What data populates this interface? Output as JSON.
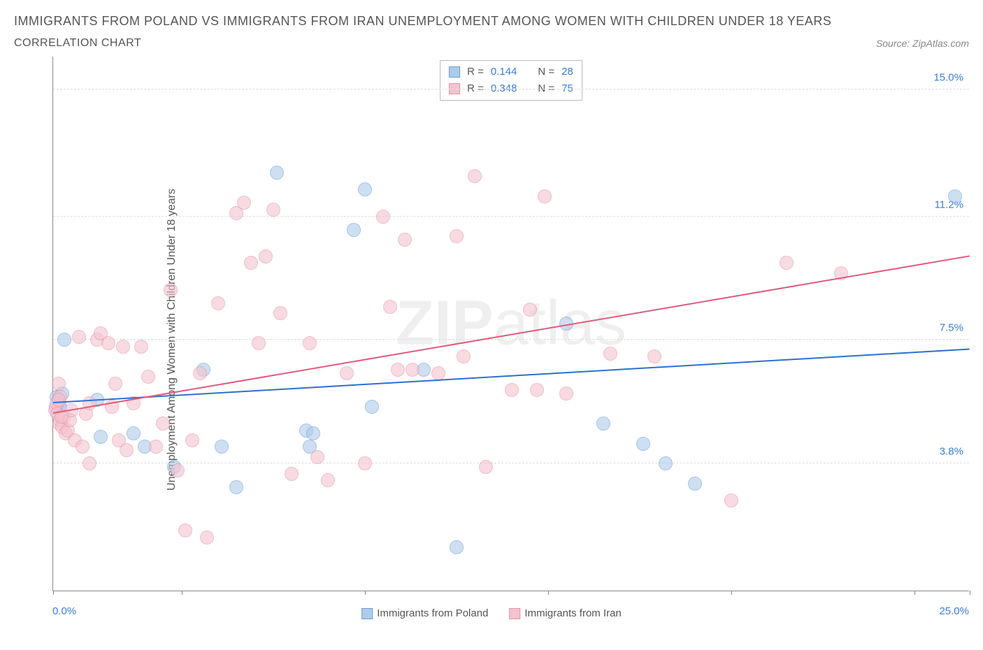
{
  "title": "IMMIGRANTS FROM POLAND VS IMMIGRANTS FROM IRAN UNEMPLOYMENT AMONG WOMEN WITH CHILDREN UNDER 18 YEARS",
  "subtitle": "CORRELATION CHART",
  "source_label": "Source:",
  "source_value": "ZipAtlas.com",
  "ylabel": "Unemployment Among Women with Children Under 18 years",
  "watermark_bold": "ZIP",
  "watermark_light": "atlas",
  "chart": {
    "type": "scatter",
    "xlim": [
      0,
      25
    ],
    "ylim": [
      0,
      16
    ],
    "x_min_label": "0.0%",
    "x_max_label": "25.0%",
    "xtick_positions": [
      0,
      3.5,
      8.5,
      13.5,
      18.5,
      23.5,
      25
    ],
    "yticks": [
      {
        "v": 3.8,
        "label": "3.8%"
      },
      {
        "v": 7.5,
        "label": "7.5%"
      },
      {
        "v": 11.2,
        "label": "11.2%"
      },
      {
        "v": 15.0,
        "label": "15.0%"
      }
    ],
    "background_color": "#ffffff",
    "grid_color": "#dddddd",
    "point_radius": 10,
    "series": [
      {
        "key": "poland",
        "label": "Immigrants from Poland",
        "fill": "#afcbea",
        "stroke": "#6a9fd8",
        "line_color": "#2d6fd0",
        "R": "0.144",
        "N": "28",
        "trend": {
          "x1": 0,
          "y1": 5.6,
          "x2": 25,
          "y2": 7.2
        },
        "points": [
          [
            0.1,
            5.8
          ],
          [
            0.15,
            5.6
          ],
          [
            0.3,
            7.5
          ],
          [
            1.2,
            5.7
          ],
          [
            1.3,
            4.6
          ],
          [
            2.2,
            4.7
          ],
          [
            2.5,
            4.3
          ],
          [
            3.3,
            3.7
          ],
          [
            4.1,
            6.6
          ],
          [
            4.6,
            4.3
          ],
          [
            5.0,
            3.1
          ],
          [
            6.1,
            12.5
          ],
          [
            6.9,
            4.8
          ],
          [
            7.0,
            4.3
          ],
          [
            7.1,
            4.7
          ],
          [
            8.2,
            10.8
          ],
          [
            8.5,
            12.0
          ],
          [
            8.7,
            5.5
          ],
          [
            10.1,
            6.6
          ],
          [
            11.0,
            1.3
          ],
          [
            14.0,
            8.0
          ],
          [
            15.0,
            5.0
          ],
          [
            16.1,
            4.4
          ],
          [
            16.7,
            3.8
          ],
          [
            17.5,
            3.2
          ],
          [
            24.6,
            11.8
          ],
          [
            0.25,
            5.9
          ],
          [
            0.2,
            5.5
          ]
        ]
      },
      {
        "key": "iran",
        "label": "Immigrants from Iran",
        "fill": "#f4c3cf",
        "stroke": "#e693a7",
        "line_color": "#e05a7d",
        "R": "0.348",
        "N": "75",
        "trend": {
          "x1": 0,
          "y1": 5.3,
          "x2": 25,
          "y2": 10.0
        },
        "points": [
          [
            0.05,
            5.4
          ],
          [
            0.08,
            5.5
          ],
          [
            0.1,
            5.6
          ],
          [
            0.12,
            5.3
          ],
          [
            0.15,
            6.2
          ],
          [
            0.18,
            5.0
          ],
          [
            0.2,
            5.1
          ],
          [
            0.2,
            5.8
          ],
          [
            0.25,
            4.9
          ],
          [
            0.3,
            5.2
          ],
          [
            0.35,
            4.7
          ],
          [
            0.4,
            4.8
          ],
          [
            0.45,
            5.1
          ],
          [
            0.5,
            5.4
          ],
          [
            0.6,
            4.5
          ],
          [
            0.7,
            7.6
          ],
          [
            0.8,
            4.3
          ],
          [
            0.9,
            5.3
          ],
          [
            1.0,
            5.6
          ],
          [
            1.0,
            3.8
          ],
          [
            1.2,
            7.5
          ],
          [
            1.3,
            7.7
          ],
          [
            1.5,
            7.4
          ],
          [
            1.6,
            5.5
          ],
          [
            1.7,
            6.2
          ],
          [
            1.8,
            4.5
          ],
          [
            1.9,
            7.3
          ],
          [
            2.0,
            4.2
          ],
          [
            2.2,
            5.6
          ],
          [
            2.4,
            7.3
          ],
          [
            2.6,
            6.4
          ],
          [
            2.8,
            4.3
          ],
          [
            3.0,
            5.0
          ],
          [
            3.2,
            9.0
          ],
          [
            3.4,
            3.6
          ],
          [
            3.6,
            1.8
          ],
          [
            3.8,
            4.5
          ],
          [
            4.0,
            6.5
          ],
          [
            4.2,
            1.6
          ],
          [
            4.5,
            8.6
          ],
          [
            5.0,
            11.3
          ],
          [
            5.2,
            11.6
          ],
          [
            5.4,
            9.8
          ],
          [
            5.6,
            7.4
          ],
          [
            5.8,
            10.0
          ],
          [
            6.0,
            11.4
          ],
          [
            6.2,
            8.3
          ],
          [
            6.5,
            3.5
          ],
          [
            7.0,
            7.4
          ],
          [
            7.2,
            4.0
          ],
          [
            7.5,
            3.3
          ],
          [
            8.0,
            6.5
          ],
          [
            8.5,
            3.8
          ],
          [
            9.0,
            11.2
          ],
          [
            9.2,
            8.5
          ],
          [
            9.4,
            6.6
          ],
          [
            9.6,
            10.5
          ],
          [
            9.8,
            6.6
          ],
          [
            10.5,
            6.5
          ],
          [
            11.0,
            10.6
          ],
          [
            11.2,
            7.0
          ],
          [
            11.5,
            12.4
          ],
          [
            11.8,
            3.7
          ],
          [
            12.5,
            6.0
          ],
          [
            13.0,
            8.4
          ],
          [
            13.2,
            6.0
          ],
          [
            13.4,
            11.8
          ],
          [
            14.0,
            5.9
          ],
          [
            15.2,
            7.1
          ],
          [
            16.4,
            7.0
          ],
          [
            18.5,
            2.7
          ],
          [
            20.0,
            9.8
          ],
          [
            21.5,
            9.5
          ],
          [
            0.15,
            5.7
          ],
          [
            0.22,
            5.2
          ]
        ]
      }
    ]
  },
  "stats_box": {
    "R_label": "R =",
    "N_label": "N ="
  }
}
